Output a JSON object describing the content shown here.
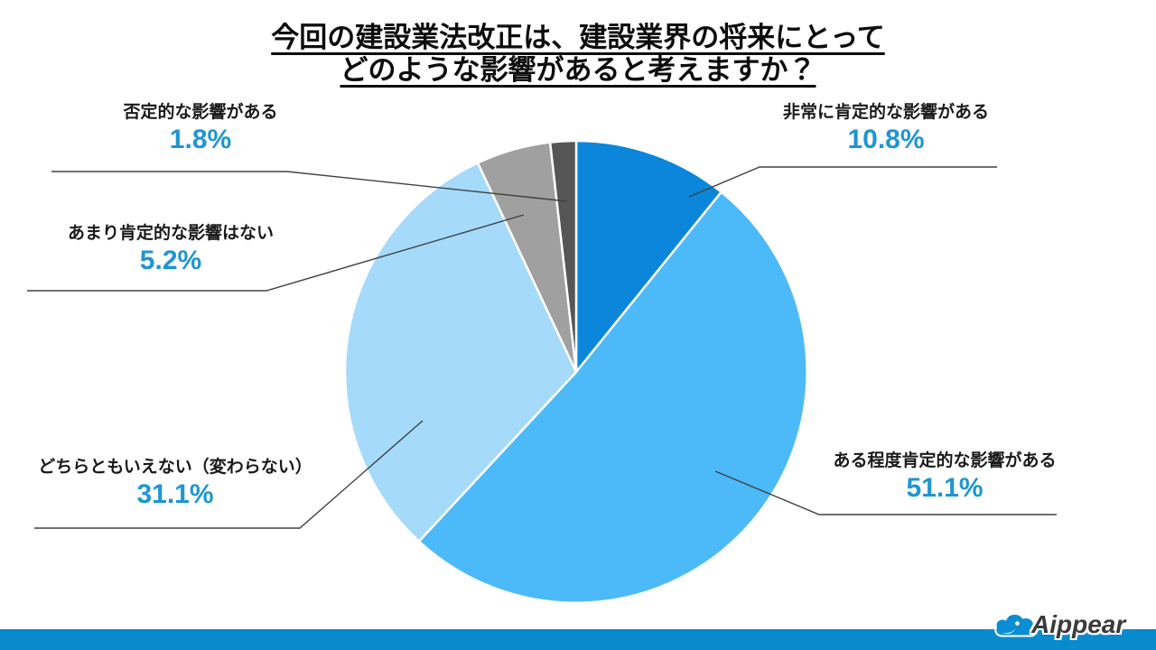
{
  "title": {
    "line1": "今回の建設業法改正は、建設業界の将来にとって",
    "line2": "どのような影響があると考えますか？"
  },
  "chart_data": {
    "type": "pie",
    "title": "今回の建設業法改正は、建設業界の将来にとってどのような影響があると考えますか？",
    "unit": "%",
    "start_angle_deg": 0,
    "direction": "clockwise",
    "legend": "none",
    "labels": "outside-callouts",
    "series": [
      {
        "name": "非常に肯定的な影響がある",
        "value": 10.8,
        "pct_label": "10.8%",
        "color": "#0B86DB"
      },
      {
        "name": "ある程度肯定的な影響がある",
        "value": 51.1,
        "pct_label": "51.1%",
        "color": "#4CBAF8"
      },
      {
        "name": "どちらともいえない（変わらない）",
        "value": 31.1,
        "pct_label": "31.1%",
        "color": "#A5DAFA"
      },
      {
        "name": "あまり肯定的な影響はない",
        "value": 5.2,
        "pct_label": "5.2%",
        "color": "#A0A0A0"
      },
      {
        "name": "否定的な影響がある",
        "value": 1.8,
        "pct_label": "1.8%",
        "color": "#565656"
      }
    ]
  },
  "colors": {
    "pct_text": "#1E95D3",
    "label_text": "#1A1A1A",
    "leader_line": "#404040",
    "slice_border": "#FFFFFF",
    "footer_band": "#098ACD",
    "logo_cloud": "#0A8DD2"
  },
  "footer": {
    "logo_text": "Aippear"
  }
}
